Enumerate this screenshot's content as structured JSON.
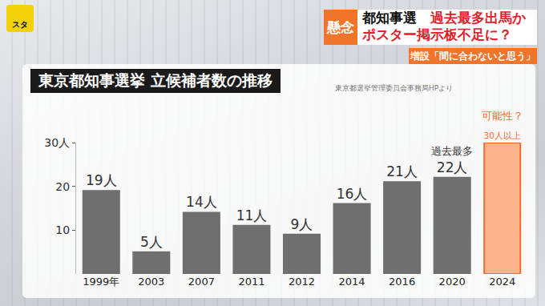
{
  "banner": {
    "logo": "スタ",
    "tag": "懸念",
    "headline": [
      [
        {
          "text": "都知事選　",
          "color": "#111111"
        },
        {
          "text": "過去最多出馬か",
          "color": "#e0202a"
        }
      ],
      [
        {
          "text": "ポスター掲示板不足に？",
          "color": "#e0202a"
        }
      ]
    ],
    "subhead": "増設「間に合わないと思う」"
  },
  "chart_data": {
    "type": "bar",
    "title": "東京都知事選挙 立候補者数の推移",
    "source": "東京都選挙管理委員会事務局HPより",
    "categories": [
      "1999年",
      "2003",
      "2007",
      "2011",
      "2012",
      "2014",
      "2016",
      "2020",
      "2024"
    ],
    "values": [
      19,
      5,
      14,
      11,
      9,
      16,
      21,
      22,
      30
    ],
    "value_labels": [
      "19人",
      "5人",
      "14人",
      "11人",
      "9人",
      "16人",
      "21人",
      "22人",
      "30人以上"
    ],
    "colors": [
      "#6f6f6f",
      "#6f6f6f",
      "#6f6f6f",
      "#6f6f6f",
      "#6f6f6f",
      "#6f6f6f",
      "#6f6f6f",
      "#6f6f6f",
      "#fbb48c"
    ],
    "ylim": [
      0,
      30
    ],
    "yticks": [
      10,
      20,
      {
        "value": 30,
        "label": "30人"
      }
    ],
    "grid": false,
    "data_labels": true,
    "annotations": [
      {
        "category": "2020",
        "text": "過去最多",
        "color": "#333333"
      },
      {
        "category": "2024",
        "text": "可能性？",
        "color": "#f06a2a"
      }
    ]
  }
}
